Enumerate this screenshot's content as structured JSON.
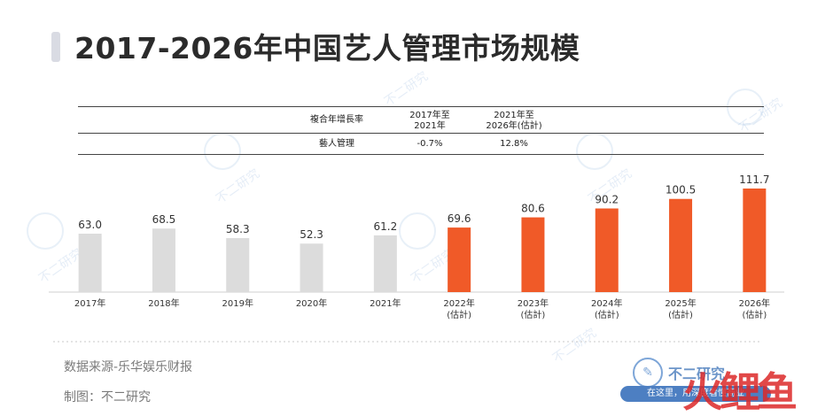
{
  "title": "2017-2026年中国艺人管理市场规模",
  "cagr_table": {
    "header_label": "複合年增長率",
    "col1": [
      "2017年至",
      "2021年"
    ],
    "col2": [
      "2021年至",
      "2026年(估計)"
    ],
    "row_label": "藝人管理",
    "row_values": [
      "-0.7%",
      "12.8%"
    ]
  },
  "chart_data": {
    "type": "bar",
    "categories": [
      "2017年",
      "2018年",
      "2019年",
      "2020年",
      "2021年",
      "2022年",
      "2023年",
      "2024年",
      "2025年",
      "2026年"
    ],
    "category_notes": [
      "",
      "",
      "",
      "",
      "",
      "(估計)",
      "(估計)",
      "(估計)",
      "(估計)",
      "(估計)"
    ],
    "values": [
      63.0,
      68.5,
      58.3,
      52.3,
      61.2,
      69.6,
      80.6,
      90.2,
      100.5,
      111.7
    ],
    "value_labels": [
      "63.0",
      "68.5",
      "58.3",
      "52.3",
      "61.2",
      "69.6",
      "80.6",
      "90.2",
      "100.5",
      "111.7"
    ],
    "series_colors": [
      "#dcdcdc",
      "#dcdcdc",
      "#dcdcdc",
      "#dcdcdc",
      "#dcdcdc",
      "#f05a28",
      "#f05a28",
      "#f05a28",
      "#f05a28",
      "#f05a28"
    ],
    "ylim": [
      0,
      111.7
    ],
    "grid": false,
    "title": "",
    "xlabel": "",
    "ylabel": ""
  },
  "footer": {
    "source": "数据来源-乐华娱乐财报",
    "made_by": "制图：不二研究"
  },
  "brand": {
    "logo_text": "不二研究",
    "pill_text": "在这里，用深度看懂商业",
    "watermark_text": "不二研究"
  },
  "colors": {
    "actual_bar": "#dcdcdc",
    "estimate_bar": "#f05a28",
    "accent": "#4d7fc2"
  }
}
